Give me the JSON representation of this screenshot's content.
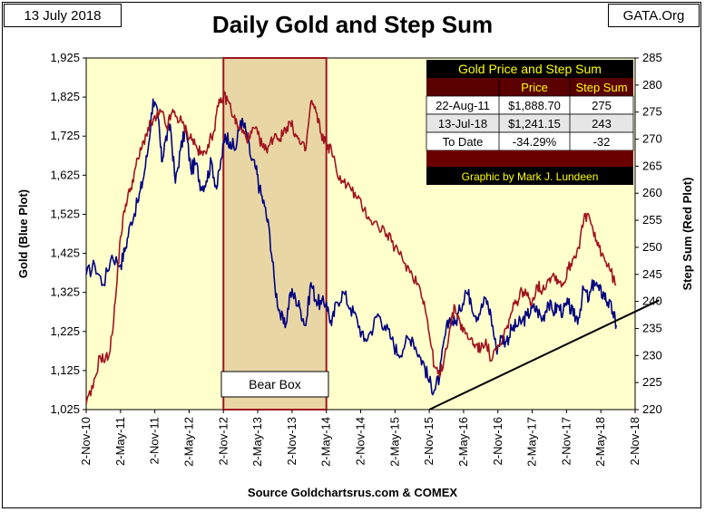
{
  "header": {
    "date": "13 July 2018",
    "source_tag": "GATA.Org",
    "title": "Daily Gold and Step Sum"
  },
  "footer": {
    "source": "Source Goldchartsrus.com & COMEX"
  },
  "colors": {
    "plot_bg": "#ffffcc",
    "gold_line": "#000080",
    "step_sum_line": "#a0141e",
    "bear_box_fill": "#e8d7a5",
    "bear_box_border": "#a0141e",
    "table_header_bg": "#5a0000",
    "table_header_text": "#ffff00"
  },
  "annotations": {
    "bear_box_label": "Bear Box",
    "trendline": "black trendline from Nov-15 low rising through 2018"
  },
  "table": {
    "title": "Gold Price and Step Sum",
    "columns": [
      "",
      "Price",
      "Step Sum"
    ],
    "rows": [
      [
        "22-Aug-11",
        "$1,888.70",
        "275"
      ],
      [
        "13-Jul-18",
        "$1,241.15",
        "243"
      ],
      [
        "To Date",
        "-34.29%",
        "-32"
      ]
    ],
    "credit": "Graphic by Mark J. Lundeen"
  },
  "chart_data": {
    "type": "line",
    "title": "Daily Gold and Step Sum",
    "xlabel": "",
    "ylabel": "Gold  (Blue Plot)",
    "y2label": "Step Sum  (Red Plot)",
    "x_tick_labels": [
      "2-Nov-10",
      "2-May-11",
      "2-Nov-11",
      "2-May-12",
      "2-Nov-12",
      "2-May-13",
      "2-Nov-13",
      "2-May-14",
      "2-Nov-14",
      "2-May-15",
      "2-Nov-15",
      "2-May-16",
      "2-Nov-16",
      "2-May-17",
      "2-Nov-17",
      "2-May-18",
      "2-Nov-18"
    ],
    "ylim": [
      1025,
      1925
    ],
    "y_ticks": [
      "1,025",
      "1,125",
      "1,225",
      "1,325",
      "1,425",
      "1,525",
      "1,625",
      "1,725",
      "1,825",
      "1,925"
    ],
    "y2lim": [
      220,
      285
    ],
    "y2_ticks": [
      "220",
      "225",
      "230",
      "235",
      "240",
      "245",
      "250",
      "255",
      "260",
      "265",
      "270",
      "275",
      "280",
      "285"
    ],
    "bear_box_x": [
      4.0,
      7.0
    ],
    "series": [
      {
        "name": "Gold",
        "axis": "left",
        "x": [
          0,
          0.25,
          0.5,
          0.75,
          1,
          1.15,
          1.3,
          1.5,
          1.65,
          1.8,
          1.95,
          2.1,
          2.2,
          2.3,
          2.45,
          2.6,
          2.75,
          2.9,
          3.05,
          3.2,
          3.35,
          3.5,
          3.65,
          3.8,
          3.95,
          4.05,
          4.2,
          4.35,
          4.5,
          4.65,
          4.8,
          4.95,
          5.05,
          5.2,
          5.35,
          5.5,
          5.65,
          5.8,
          5.95,
          6.1,
          6.25,
          6.4,
          6.55,
          6.7,
          6.85,
          7.0,
          7.15,
          7.3,
          7.5,
          7.7,
          7.9,
          8.1,
          8.3,
          8.5,
          8.7,
          8.9,
          9.1,
          9.3,
          9.5,
          9.7,
          9.85,
          10.0,
          10.15,
          10.3,
          10.45,
          10.6,
          10.75,
          10.9,
          11.05,
          11.2,
          11.35,
          11.5,
          11.65,
          11.8,
          11.95,
          12.1,
          12.25,
          12.4,
          12.55,
          12.7,
          12.85,
          13.0,
          13.15,
          13.3,
          13.45,
          13.6,
          13.75,
          13.9,
          14.05,
          14.2,
          14.35,
          14.5,
          14.65,
          14.8,
          14.95,
          15.1,
          15.2,
          15.35,
          15.45
        ],
        "values": [
          1370,
          1395,
          1345,
          1420,
          1395,
          1440,
          1505,
          1555,
          1610,
          1690,
          1820,
          1770,
          1660,
          1710,
          1755,
          1605,
          1690,
          1745,
          1640,
          1655,
          1595,
          1610,
          1660,
          1590,
          1670,
          1730,
          1710,
          1690,
          1765,
          1740,
          1670,
          1640,
          1590,
          1545,
          1475,
          1340,
          1270,
          1235,
          1325,
          1310,
          1280,
          1240,
          1350,
          1305,
          1295,
          1300,
          1240,
          1300,
          1325,
          1285,
          1255,
          1200,
          1225,
          1270,
          1240,
          1205,
          1165,
          1195,
          1210,
          1165,
          1140,
          1095,
          1075,
          1110,
          1210,
          1260,
          1245,
          1280,
          1330,
          1310,
          1265,
          1280,
          1310,
          1265,
          1180,
          1210,
          1200,
          1230,
          1240,
          1250,
          1265,
          1285,
          1280,
          1255,
          1300,
          1275,
          1290,
          1275,
          1295,
          1265,
          1260,
          1335,
          1305,
          1355,
          1330,
          1320,
          1300,
          1275,
          1241
        ]
      },
      {
        "name": "Step Sum",
        "axis": "right",
        "x": [
          0,
          0.2,
          0.4,
          0.55,
          0.7,
          0.85,
          1.0,
          1.15,
          1.3,
          1.45,
          1.6,
          1.75,
          1.9,
          2.05,
          2.2,
          2.35,
          2.5,
          2.65,
          2.8,
          2.95,
          3.1,
          3.25,
          3.4,
          3.55,
          3.7,
          3.85,
          4.0,
          4.15,
          4.3,
          4.45,
          4.6,
          4.75,
          4.9,
          5.05,
          5.2,
          5.35,
          5.5,
          5.65,
          5.8,
          5.95,
          6.1,
          6.25,
          6.4,
          6.55,
          6.7,
          6.85,
          7.0,
          7.15,
          7.3,
          7.5,
          7.7,
          7.9,
          8.1,
          8.3,
          8.5,
          8.7,
          8.9,
          9.1,
          9.3,
          9.5,
          9.7,
          9.85,
          10.0,
          10.15,
          10.3,
          10.45,
          10.6,
          10.75,
          10.9,
          11.05,
          11.2,
          11.35,
          11.5,
          11.65,
          11.8,
          11.95,
          12.1,
          12.25,
          12.4,
          12.55,
          12.7,
          12.85,
          13.0,
          13.15,
          13.3,
          13.45,
          13.6,
          13.75,
          13.9,
          14.05,
          14.2,
          14.35,
          14.5,
          14.65,
          14.8,
          14.95,
          15.1,
          15.25,
          15.45
        ],
        "values": [
          221,
          224,
          230,
          229,
          231,
          240,
          252,
          258,
          261,
          265,
          268,
          271,
          273,
          274,
          275,
          272,
          275,
          274,
          273,
          271,
          270,
          268,
          267,
          269,
          271,
          276,
          278,
          277,
          274,
          272,
          271,
          270,
          272,
          270,
          268,
          269,
          271,
          270,
          272,
          273,
          271,
          269,
          268,
          277,
          275,
          271,
          269,
          268,
          264,
          262,
          261,
          259,
          257,
          255,
          254,
          253,
          251,
          249,
          247,
          245,
          243,
          240,
          234,
          228,
          226,
          230,
          235,
          239,
          236,
          234,
          233,
          232,
          231,
          233,
          229,
          231,
          232,
          235,
          238,
          240,
          242,
          241,
          240,
          243,
          242,
          244,
          245,
          244,
          243,
          246,
          248,
          250,
          255,
          256,
          252,
          250,
          248,
          246,
          243
        ]
      }
    ],
    "trendline": {
      "x": [
        10.0,
        16.7
      ],
      "y_left": [
        1025,
        1305
      ]
    },
    "grid": false,
    "legend": "none"
  }
}
